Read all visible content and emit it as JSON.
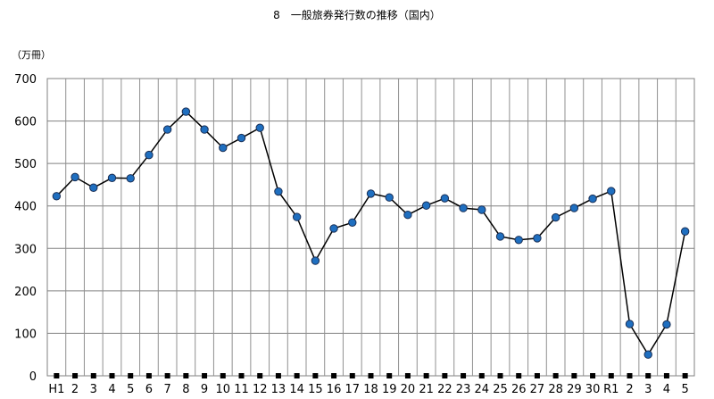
{
  "chart_data": {
    "type": "line",
    "title": "8　一般旅券発行数の推移（国内）",
    "ylabel": "（万冊）",
    "xlabel": "",
    "ylim": [
      0,
      700
    ],
    "yticks": [
      0,
      100,
      200,
      300,
      400,
      500,
      600,
      700
    ],
    "grid": true,
    "categories": [
      "H1",
      "2",
      "3",
      "4",
      "5",
      "6",
      "7",
      "8",
      "9",
      "10",
      "11",
      "12",
      "13",
      "14",
      "15",
      "16",
      "17",
      "18",
      "19",
      "20",
      "21",
      "22",
      "23",
      "24",
      "25",
      "26",
      "27",
      "28",
      "29",
      "30",
      "R1",
      "2",
      "3",
      "4",
      "5"
    ],
    "series": [
      {
        "color": "#1f6fc0",
        "values": [
          423,
          468,
          443,
          466,
          465,
          520,
          580,
          622,
          580,
          537,
          560,
          584,
          434,
          374,
          271,
          347,
          361,
          429,
          420,
          379,
          401,
          418,
          395,
          391,
          328,
          320,
          324,
          373,
          395,
          417,
          435,
          122,
          50,
          121,
          340
        ]
      }
    ],
    "baseline_markers_color": "#000000"
  }
}
